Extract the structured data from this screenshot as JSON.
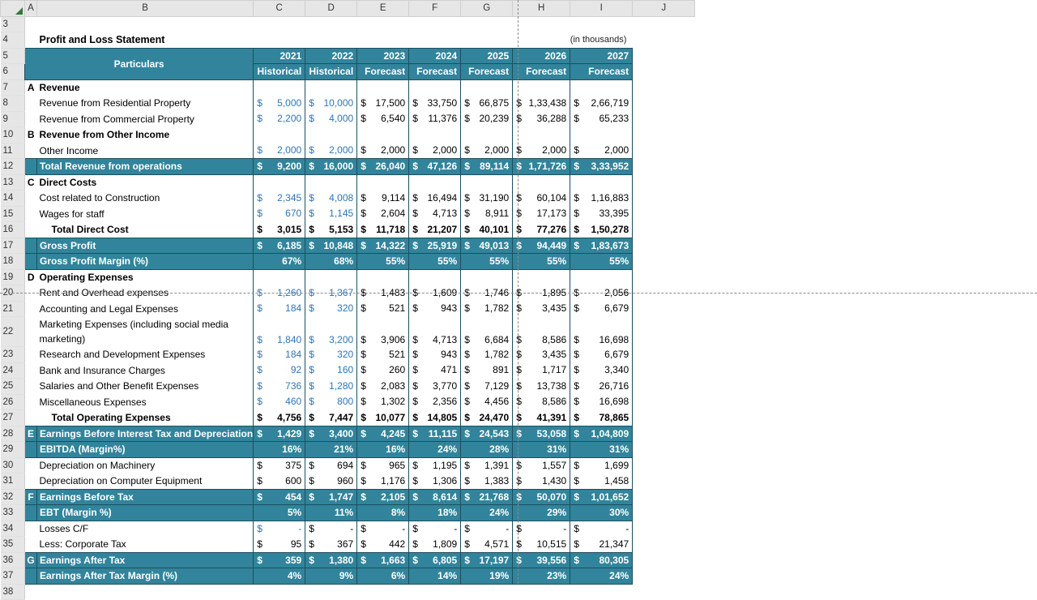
{
  "grid": {
    "columns": [
      "A",
      "B",
      "C",
      "D",
      "E",
      "F",
      "G",
      "H",
      "I",
      "J"
    ],
    "top_rows": [
      "3",
      "4"
    ],
    "bottom_row": "38"
  },
  "sheet": {
    "title": "Profit and Loss Statement",
    "unit_note": "(in thousands)",
    "particulars_label": "Particulars",
    "years": [
      "2021",
      "2022",
      "2023",
      "2024",
      "2025",
      "2026",
      "2027"
    ],
    "year_types": [
      "Historical",
      "Historical",
      "Forecast",
      "Forecast",
      "Forecast",
      "Forecast",
      "Forecast"
    ]
  },
  "rows": [
    {
      "r": "7",
      "sec": "A",
      "label": "Revenue",
      "kind": "section"
    },
    {
      "r": "8",
      "label": "Revenue from Residential Property",
      "kind": "item",
      "input": true,
      "vals": [
        "5,000",
        "10,000",
        "17,500",
        "33,750",
        "66,875",
        "1,33,438",
        "2,66,719"
      ]
    },
    {
      "r": "9",
      "label": "Revenue from Commercial Property",
      "kind": "item",
      "input": true,
      "vals": [
        "2,200",
        "4,000",
        "6,540",
        "11,376",
        "20,239",
        "36,288",
        "65,233"
      ]
    },
    {
      "r": "10",
      "sec": "B",
      "label": "Revenue from Other Income",
      "kind": "section"
    },
    {
      "r": "11",
      "label": "Other Income",
      "kind": "item",
      "input": true,
      "vals": [
        "2,000",
        "2,000",
        "2,000",
        "2,000",
        "2,000",
        "2,000",
        "2,000"
      ]
    },
    {
      "r": "12",
      "label": "Total Revenue from operations",
      "kind": "teal",
      "vals": [
        "9,200",
        "16,000",
        "26,040",
        "47,126",
        "89,114",
        "1,71,726",
        "3,33,952"
      ]
    },
    {
      "r": "13",
      "sec": "C",
      "label": "Direct Costs",
      "kind": "section"
    },
    {
      "r": "14",
      "label": "Cost related to Construction",
      "kind": "item",
      "input": true,
      "vals": [
        "2,345",
        "4,008",
        "9,114",
        "16,494",
        "31,190",
        "60,104",
        "1,16,883"
      ]
    },
    {
      "r": "15",
      "label": "Wages for staff",
      "kind": "item",
      "input": true,
      "vals": [
        "670",
        "1,145",
        "2,604",
        "4,713",
        "8,911",
        "17,173",
        "33,395"
      ]
    },
    {
      "r": "16",
      "label": "Total Direct Cost",
      "kind": "total",
      "vals": [
        "3,015",
        "5,153",
        "11,718",
        "21,207",
        "40,101",
        "77,276",
        "1,50,278"
      ]
    },
    {
      "r": "17",
      "label": "Gross Profit",
      "kind": "teal",
      "vals": [
        "6,185",
        "10,848",
        "14,322",
        "25,919",
        "49,013",
        "94,449",
        "1,83,673"
      ]
    },
    {
      "r": "18",
      "label": "Gross Profit Margin (%)",
      "kind": "tealpct",
      "vals": [
        "67%",
        "68%",
        "55%",
        "55%",
        "55%",
        "55%",
        "55%"
      ]
    },
    {
      "r": "19",
      "sec": "D",
      "label": "Operating Expenses",
      "kind": "section"
    },
    {
      "r": "20",
      "label": "Rent and Overhead expenses",
      "kind": "item",
      "input": true,
      "vals": [
        "1,260",
        "1,367",
        "1,483",
        "1,609",
        "1,746",
        "1,895",
        "2,056"
      ]
    },
    {
      "r": "21",
      "label": "Accounting and Legal Expenses",
      "kind": "item",
      "input": true,
      "vals": [
        "184",
        "320",
        "521",
        "943",
        "1,782",
        "3,435",
        "6,679"
      ]
    },
    {
      "r": "22",
      "label": "Marketing Expenses (including social media marketing)",
      "kind": "item2",
      "input": true,
      "vals": [
        "1,840",
        "3,200",
        "3,906",
        "4,713",
        "6,684",
        "8,586",
        "16,698"
      ]
    },
    {
      "r": "23",
      "label": "Research and Development Expenses",
      "kind": "item",
      "input": true,
      "vals": [
        "184",
        "320",
        "521",
        "943",
        "1,782",
        "3,435",
        "6,679"
      ]
    },
    {
      "r": "24",
      "label": "Bank and Insurance Charges",
      "kind": "item",
      "input": true,
      "vals": [
        "92",
        "160",
        "260",
        "471",
        "891",
        "1,717",
        "3,340"
      ]
    },
    {
      "r": "25",
      "label": "Salaries and Other Benefit Expenses",
      "kind": "item",
      "input": true,
      "vals": [
        "736",
        "1,280",
        "2,083",
        "3,770",
        "7,129",
        "13,738",
        "26,716"
      ]
    },
    {
      "r": "26",
      "label": "Miscellaneous Expenses",
      "kind": "item",
      "input": true,
      "vals": [
        "460",
        "800",
        "1,302",
        "2,356",
        "4,456",
        "8,586",
        "16,698"
      ]
    },
    {
      "r": "27",
      "label": "Total Operating Expenses",
      "kind": "total",
      "vals": [
        "4,756",
        "7,447",
        "10,077",
        "14,805",
        "24,470",
        "41,391",
        "78,865"
      ]
    },
    {
      "r": "28",
      "sec": "E",
      "label": "Earnings Before Interest Tax and Depreciation",
      "kind": "teal",
      "vals": [
        "1,429",
        "3,400",
        "4,245",
        "11,115",
        "24,543",
        "53,058",
        "1,04,809"
      ]
    },
    {
      "r": "29",
      "label": "EBITDA (Margin%)",
      "kind": "tealpct",
      "vals": [
        "16%",
        "21%",
        "16%",
        "24%",
        "28%",
        "31%",
        "31%"
      ]
    },
    {
      "r": "30",
      "label": "Depreciation on Machinery",
      "kind": "item",
      "vals": [
        "375",
        "694",
        "965",
        "1,195",
        "1,391",
        "1,557",
        "1,699"
      ]
    },
    {
      "r": "31",
      "label": "Depreciation on Computer Equipment",
      "kind": "item",
      "vals": [
        "600",
        "960",
        "1,176",
        "1,306",
        "1,383",
        "1,430",
        "1,458"
      ]
    },
    {
      "r": "32",
      "sec": "F",
      "label": "Earnings Before Tax",
      "kind": "teal",
      "vals": [
        "454",
        "1,747",
        "2,105",
        "8,614",
        "21,768",
        "50,070",
        "1,01,652"
      ]
    },
    {
      "r": "33",
      "label": "EBT (Margin %)",
      "kind": "tealpct",
      "vals": [
        "5%",
        "11%",
        "8%",
        "18%",
        "24%",
        "29%",
        "30%"
      ]
    },
    {
      "r": "34",
      "label": "Losses C/F",
      "kind": "item",
      "input_first": true,
      "vals": [
        "-",
        "-",
        "-",
        "-",
        "-",
        "-",
        "-"
      ]
    },
    {
      "r": "35",
      "label": "Less: Corporate Tax",
      "kind": "item",
      "vals": [
        "95",
        "367",
        "442",
        "1,809",
        "4,571",
        "10,515",
        "21,347"
      ]
    },
    {
      "r": "36",
      "sec": "G",
      "label": "Earnings After Tax",
      "kind": "teal",
      "vals": [
        "359",
        "1,380",
        "1,663",
        "6,805",
        "17,197",
        "39,556",
        "80,305"
      ]
    },
    {
      "r": "37",
      "label": "Earnings After Tax Margin (%)",
      "kind": "tealpct",
      "vals": [
        "4%",
        "9%",
        "6%",
        "14%",
        "19%",
        "23%",
        "24%"
      ]
    }
  ],
  "currency_symbol": "$",
  "colors": {
    "teal": "#31849b",
    "input_blue": "#2e75b6",
    "header_gray": "#e6e6e6"
  }
}
